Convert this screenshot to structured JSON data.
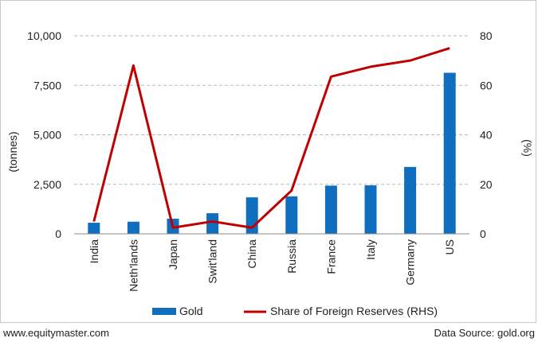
{
  "footer": {
    "website": "www.equitymaster.com",
    "source": "Data Source: gold.org"
  },
  "colors": {
    "bar": "#0f6ebe",
    "line": "#c00000",
    "grid": "#b8b8b8"
  },
  "chart_data": {
    "type": "bar",
    "title": "",
    "categories": [
      "India",
      "Neth'lands",
      "Japan",
      "Swit'land",
      "China",
      "Russia",
      "France",
      "Italy",
      "Germany",
      "US"
    ],
    "series": [
      {
        "name": "Gold",
        "type": "bar",
        "axis": "left",
        "values": [
          560,
          612,
          765,
          1040,
          1842,
          1892,
          2435,
          2451,
          3378,
          8133
        ]
      },
      {
        "name": "Share of Foreign Reserves (RHS)",
        "type": "line",
        "axis": "right",
        "values": [
          5,
          68,
          2.5,
          5,
          2.5,
          17.5,
          63.5,
          67.5,
          70,
          75
        ]
      }
    ],
    "ylabel": "(tonnes)",
    "ylim": [
      0,
      10000
    ],
    "yticks": [
      "0",
      "2,500",
      "5,000",
      "7,500",
      "10,000"
    ],
    "y2label": "(%)",
    "y2lim": [
      0,
      80
    ],
    "y2ticks": [
      "0",
      "20",
      "40",
      "60",
      "80"
    ],
    "grid": true,
    "legend": "bottom"
  }
}
